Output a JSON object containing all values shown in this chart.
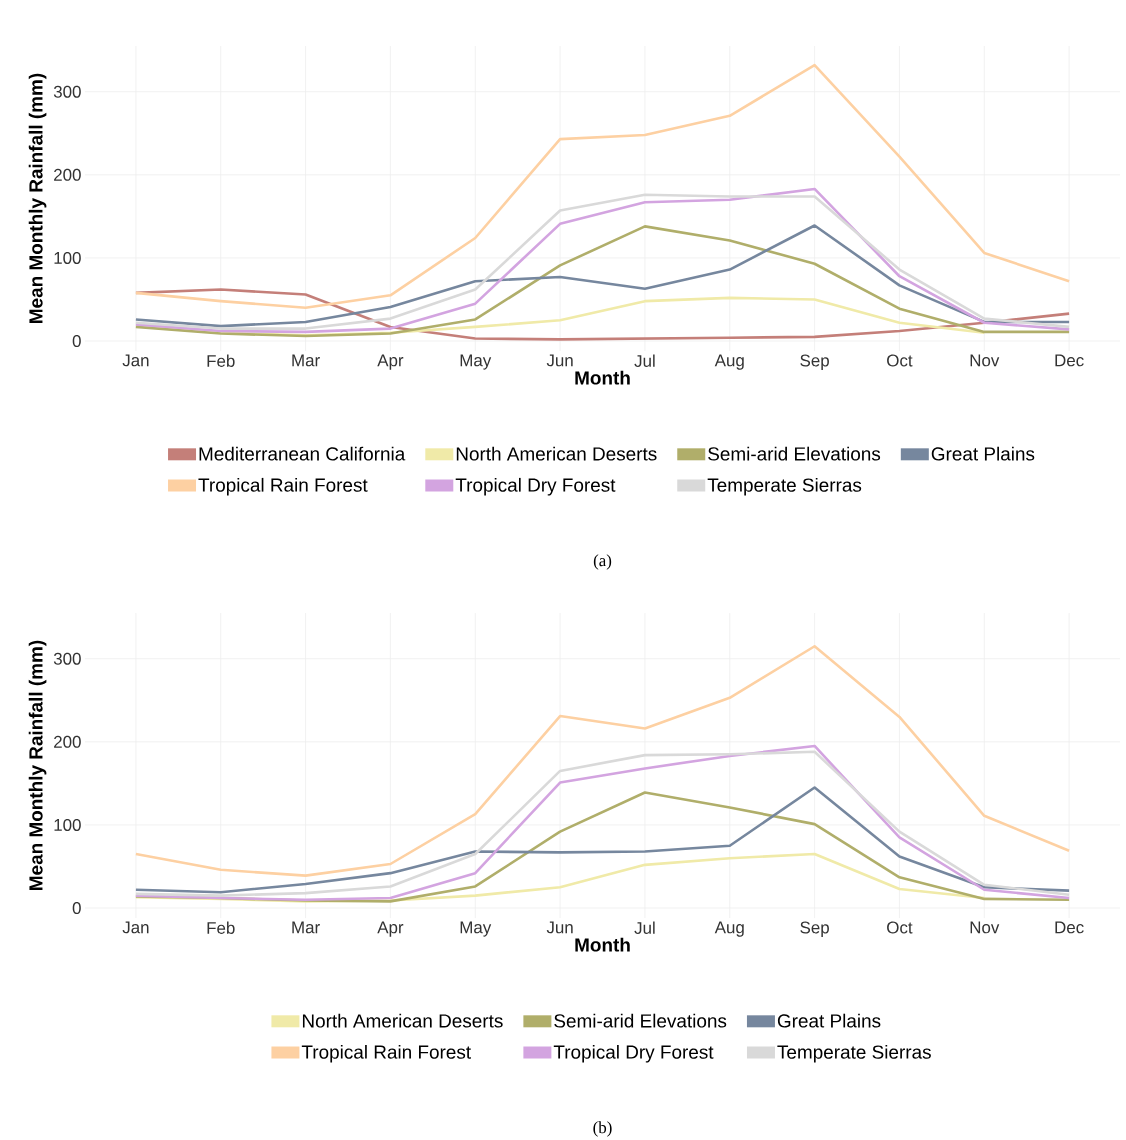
{
  "chart_data": [
    {
      "type": "line",
      "xlabel": "Month",
      "ylabel": "Mean Monthly Rainfall (mm)",
      "categories": [
        "Jan",
        "Feb",
        "Mar",
        "Apr",
        "May",
        "Jun",
        "Jul",
        "Aug",
        "Sep",
        "Oct",
        "Nov",
        "Dec"
      ],
      "ylim": [
        -12,
        355
      ],
      "yticks": [
        0,
        100,
        200,
        300
      ],
      "grid": true,
      "legend": "bottom",
      "annotations": [
        "(a)"
      ],
      "series": [
        {
          "name": "Mediterranean California",
          "color": "#c47f79",
          "values": [
            58,
            62,
            56,
            17,
            3,
            2,
            3,
            4,
            5,
            12,
            22,
            33
          ]
        },
        {
          "name": "North American Deserts",
          "color": "#f0eaa8",
          "values": [
            18,
            10,
            7,
            10,
            17,
            25,
            48,
            52,
            50,
            22,
            10,
            null
          ]
        },
        {
          "name": "Semi-arid Elevations",
          "color": "#b0ae6a",
          "values": [
            17,
            9,
            6,
            9,
            26,
            91,
            138,
            121,
            93,
            39,
            11,
            11
          ]
        },
        {
          "name": "Great Plains",
          "color": "#76879e",
          "values": [
            26,
            18,
            23,
            41,
            72,
            77,
            63,
            86,
            139,
            67,
            23,
            23
          ]
        },
        {
          "name": "Tropical Rain Forest",
          "color": "#fdd0a2",
          "values": [
            58,
            48,
            40,
            55,
            124,
            243,
            248,
            271,
            332,
            222,
            106,
            72
          ]
        },
        {
          "name": "Tropical Dry Forest",
          "color": "#d3a4e0",
          "values": [
            20,
            12,
            11,
            15,
            45,
            141,
            167,
            170,
            183,
            78,
            22,
            14
          ]
        },
        {
          "name": "Temperate Sierras",
          "color": "#d9d9d9",
          "values": [
            22,
            15,
            15,
            27,
            62,
            157,
            176,
            174,
            174,
            86,
            27,
            17
          ]
        }
      ]
    },
    {
      "type": "line",
      "xlabel": "Month",
      "ylabel": "Mean Monthly Rainfall (mm)",
      "categories": [
        "Jan",
        "Feb",
        "Mar",
        "Apr",
        "May",
        "Jun",
        "Jul",
        "Aug",
        "Sep",
        "Oct",
        "Nov",
        "Dec"
      ],
      "ylim": [
        -12,
        355
      ],
      "yticks": [
        0,
        100,
        200,
        300
      ],
      "grid": true,
      "legend": "bottom",
      "annotations": [
        "(b)"
      ],
      "series": [
        {
          "name": "North American Deserts",
          "color": "#f0eaa8",
          "values": [
            13,
            11,
            8,
            9,
            15,
            25,
            52,
            60,
            65,
            23,
            12,
            null
          ]
        },
        {
          "name": "Semi-arid Elevations",
          "color": "#b0ae6a",
          "values": [
            14,
            12,
            9,
            8,
            26,
            92,
            139,
            121,
            101,
            37,
            11,
            10
          ]
        },
        {
          "name": "Great Plains",
          "color": "#76879e",
          "values": [
            22,
            19,
            29,
            42,
            68,
            67,
            68,
            75,
            145,
            62,
            25,
            21
          ]
        },
        {
          "name": "Tropical Rain Forest",
          "color": "#fdd0a2",
          "values": [
            65,
            46,
            39,
            53,
            113,
            231,
            216,
            253,
            315,
            230,
            111,
            69
          ]
        },
        {
          "name": "Tropical Dry Forest",
          "color": "#d3a4e0",
          "values": [
            15,
            12,
            10,
            12,
            42,
            151,
            168,
            183,
            195,
            85,
            22,
            12
          ]
        },
        {
          "name": "Temperate Sierras",
          "color": "#d9d9d9",
          "values": [
            17,
            15,
            18,
            26,
            65,
            165,
            184,
            185,
            188,
            92,
            28,
            16
          ]
        }
      ]
    }
  ]
}
